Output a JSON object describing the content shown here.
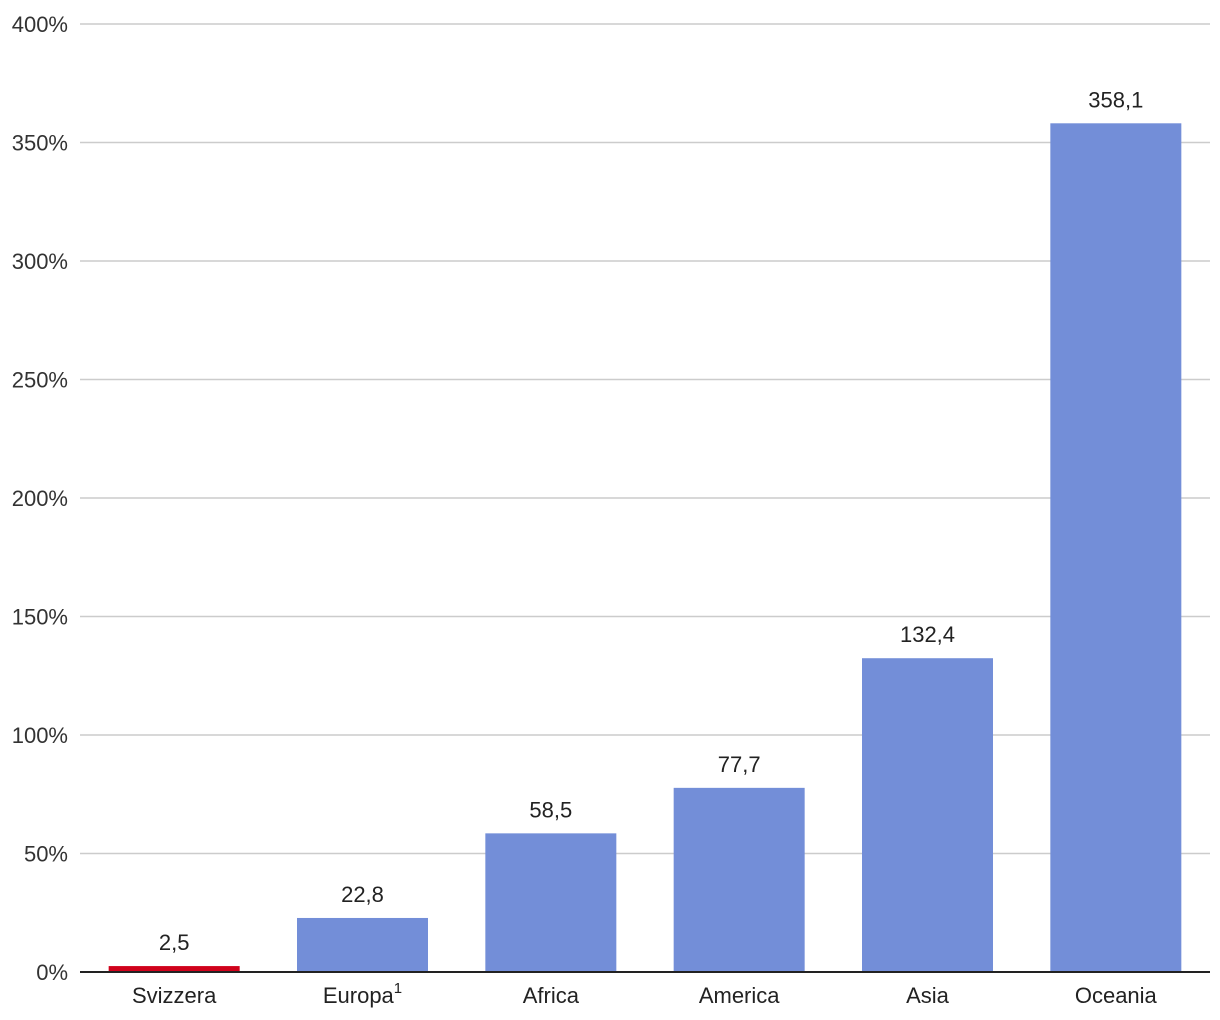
{
  "chart_data": {
    "type": "bar",
    "title": "",
    "xlabel": "",
    "ylabel": "",
    "ylim": [
      0,
      400
    ],
    "y_ticks": [
      0,
      50,
      100,
      150,
      200,
      250,
      300,
      350,
      400
    ],
    "y_tick_format": "percent",
    "grid": true,
    "categories": [
      "Svizzera",
      "Europa",
      "Africa",
      "America",
      "Asia",
      "Oceania"
    ],
    "category_superscripts": [
      "",
      "1",
      "",
      "",
      "",
      ""
    ],
    "values": [
      2.5,
      22.8,
      58.5,
      77.7,
      132.4,
      358.1
    ],
    "value_labels": [
      "2,5",
      "22,8",
      "58,5",
      "77,7",
      "132,4",
      "358,1"
    ],
    "colors": {
      "default_bar": "#738ed8",
      "highlight_bar": "#d0021b",
      "gridline": "#cccccc",
      "axis": "#222222"
    },
    "highlight_index": 0
  }
}
